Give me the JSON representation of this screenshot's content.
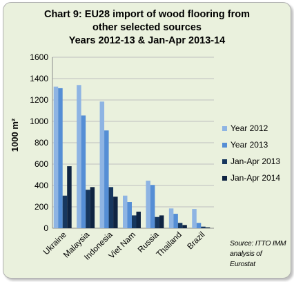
{
  "chart_data": {
    "type": "bar",
    "title": [
      "Chart 9: EU28 import of wood flooring from",
      "other selected sources",
      "Years 2012-13 & Jan-Apr 2013-14"
    ],
    "xlabel": "",
    "ylabel": "1000 m²",
    "ylim": [
      0,
      1600
    ],
    "yticks": [
      "0",
      "200",
      "400",
      "600",
      "800",
      "1000",
      "1200",
      "1400",
      "1600"
    ],
    "grid": true,
    "legend_position": "right",
    "categories": [
      "Ukraine",
      "Malaysia",
      "Indonesia",
      "Viet Nam",
      "Russia",
      "Thailand",
      "Brazil"
    ],
    "series": [
      {
        "name": "Year 2012",
        "color": "#8eb4e3",
        "values": [
          1325,
          1340,
          1185,
          305,
          445,
          185,
          180
        ]
      },
      {
        "name": "Year 2013",
        "color": "#558ed5",
        "values": [
          1310,
          1055,
          915,
          245,
          405,
          135,
          50
        ]
      },
      {
        "name": "Jan-Apr 2013",
        "color": "#17375e",
        "values": [
          305,
          360,
          385,
          120,
          105,
          50,
          15
        ]
      },
      {
        "name": "Jan-Apr 2014",
        "color": "#0f2442",
        "values": [
          580,
          385,
          295,
          155,
          120,
          30,
          8
        ]
      }
    ],
    "source": [
      "Source: ITTO IMM",
      "analysis of Eurostat"
    ]
  }
}
